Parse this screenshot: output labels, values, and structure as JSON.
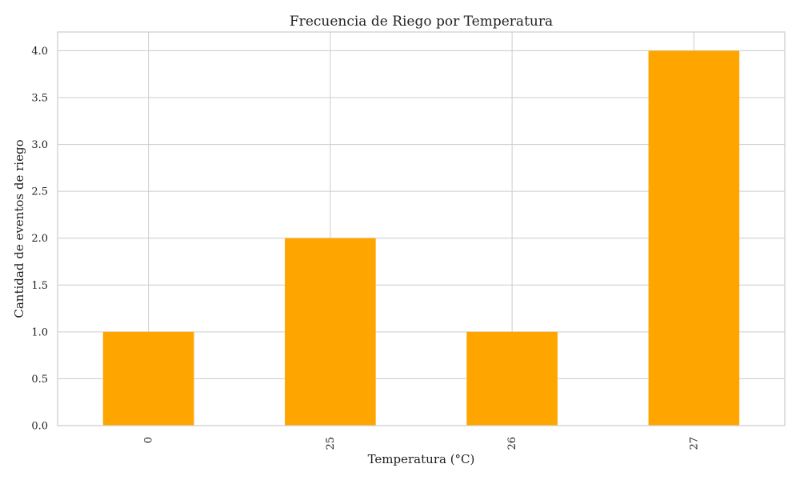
{
  "chart_data": {
    "type": "bar",
    "title": "Frecuencia de Riego por Temperatura",
    "xlabel": "Temperatura (°C)",
    "ylabel": "Cantidad de eventos de riego",
    "categories": [
      "0",
      "25",
      "26",
      "27"
    ],
    "values": [
      1,
      2,
      1,
      4
    ],
    "ylim": [
      0,
      4.2
    ],
    "yticks": [
      "0.0",
      "0.5",
      "1.0",
      "1.5",
      "2.0",
      "2.5",
      "3.0",
      "3.5",
      "4.0"
    ],
    "bar_color": "#ffa500",
    "grid": true,
    "legend": "none"
  }
}
